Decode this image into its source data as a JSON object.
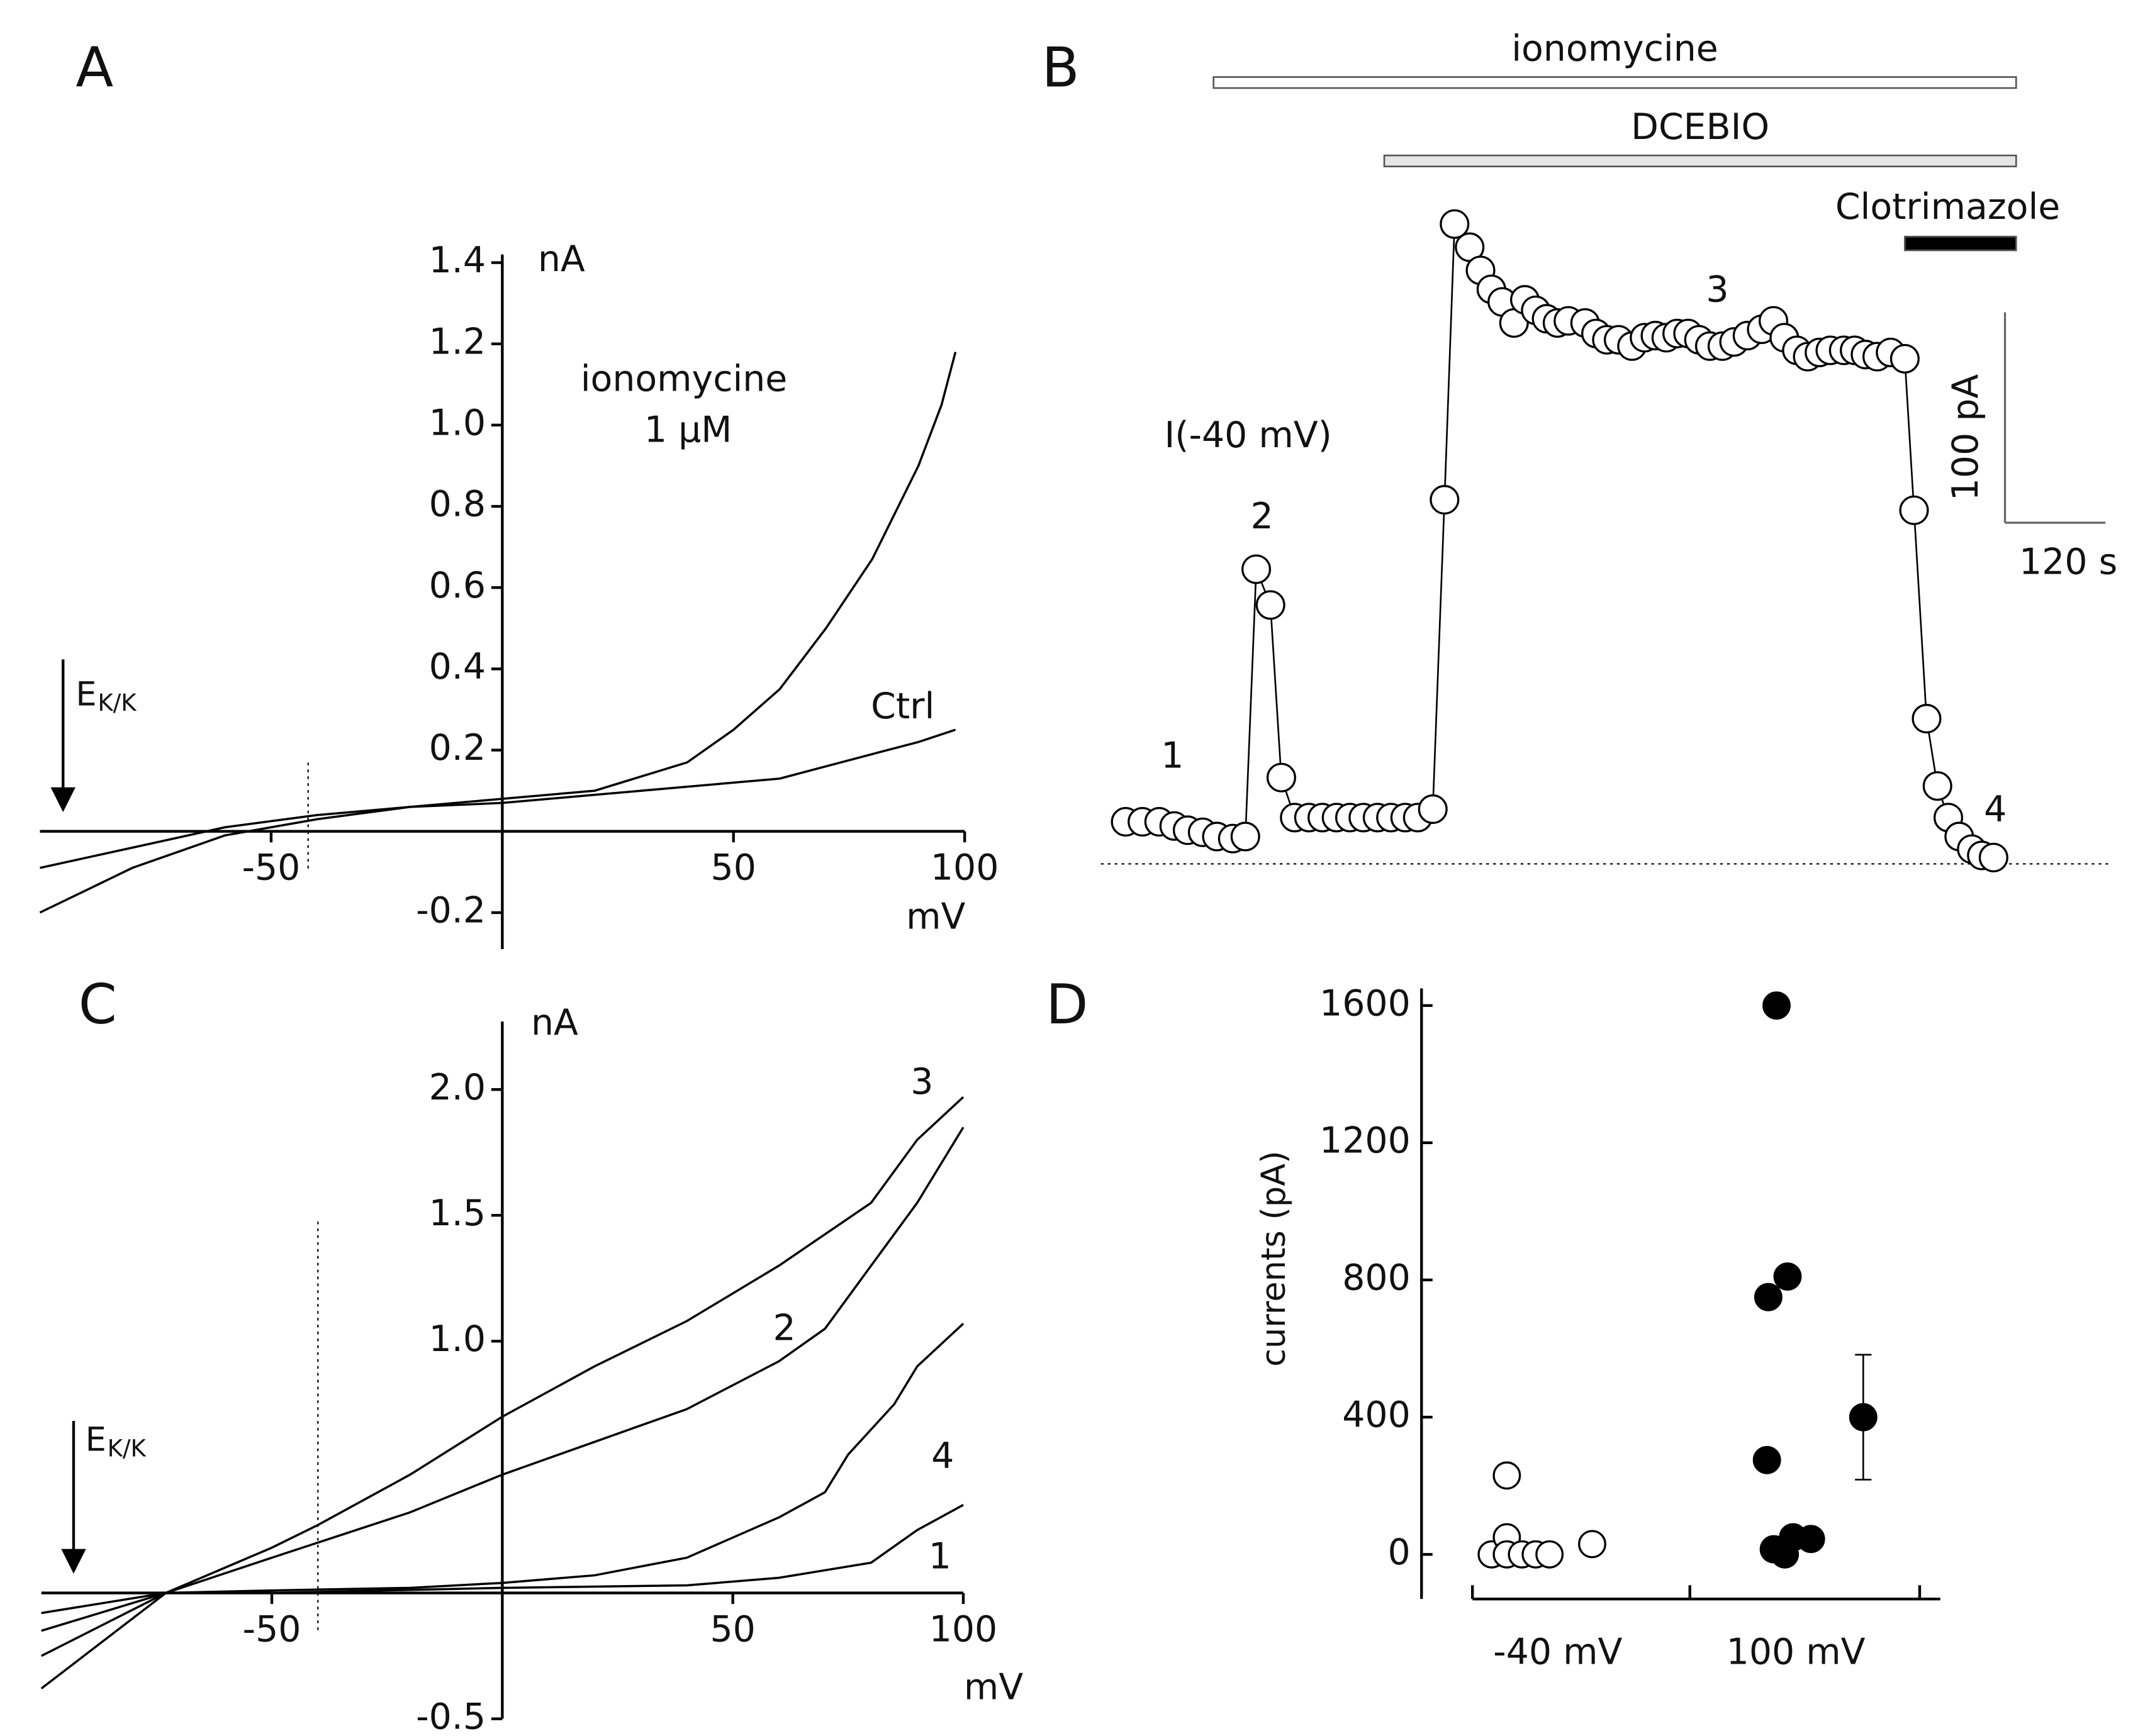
{
  "chart_data": [
    {
      "type": "line",
      "panel": "A",
      "x_label": "mV",
      "y_label": "nA",
      "xlim": [
        -100,
        100
      ],
      "ylim": [
        -0.29,
        1.42
      ],
      "xticks": [
        -50,
        50,
        100
      ],
      "yticks": [
        -0.2,
        0.2,
        0.4,
        0.6,
        0.8,
        {
          "value": 1,
          "label": "1.0"
        },
        1.2,
        1.4
      ],
      "series": [
        {
          "name": "ionomycine",
          "color": "#000000",
          "x": [
            -100,
            -80,
            -60,
            -40,
            -20,
            0,
            20,
            40,
            50,
            60,
            70,
            80,
            90,
            95,
            98
          ],
          "values": [
            -0.2,
            -0.09,
            -0.01,
            0.03,
            0.06,
            0.08,
            0.1,
            0.17,
            0.25,
            0.35,
            0.5,
            0.67,
            0.9,
            1.05,
            1.18
          ]
        },
        {
          "name": "Ctrl",
          "color": "#000000",
          "x": [
            -100,
            -80,
            -60,
            -40,
            -20,
            0,
            20,
            40,
            60,
            80,
            90,
            98
          ],
          "values": [
            -0.09,
            -0.04,
            0.01,
            0.04,
            0.06,
            0.07,
            0.09,
            0.11,
            0.13,
            0.19,
            0.22,
            0.25
          ]
        }
      ],
      "annotations": [
        "1 μM"
      ],
      "ek_label": "E",
      "ek_sub": "K/K",
      "arrow_x": -95,
      "dotted_x": -42
    },
    {
      "type": "timecourse",
      "panel": "B",
      "xlim": [
        0,
        1100
      ],
      "ylim": [
        0,
        310
      ],
      "x": [
        0,
        20,
        40,
        58,
        74,
        92,
        109,
        128,
        143,
        156,
        173,
        186,
        202,
        219,
        235,
        252,
        268,
        284,
        301,
        317,
        334,
        349,
        367,
        381,
        393,
        411,
        424,
        437,
        450,
        464,
        477,
        490,
        503,
        516,
        529,
        549,
        562,
        575,
        589,
        605,
        620,
        633,
        646,
        659,
        672,
        685,
        698,
        713,
        727,
        743,
        760,
        774,
        787,
        802,
        815,
        829,
        842,
        858,
        871,
        884,
        898,
        914,
        931,
        942,
        957,
        970,
        983,
        996,
        1011,
        1023,
        1037
      ],
      "values": [
        20,
        20,
        20,
        18,
        16,
        15,
        13,
        12,
        13,
        140,
        123,
        41,
        22,
        22,
        22,
        22,
        22,
        22,
        22,
        22,
        22,
        22,
        26,
        173,
        304,
        293,
        282,
        273,
        267,
        257,
        268,
        263,
        259,
        257,
        258,
        257,
        252,
        249,
        249,
        246,
        250,
        251,
        250,
        252,
        252,
        249,
        246,
        246,
        248,
        251,
        254,
        258,
        250,
        244,
        241,
        243,
        244,
        244,
        244,
        242,
        241,
        243,
        240,
        168,
        69,
        37,
        22,
        13,
        7,
        4,
        3
      ],
      "bars": [
        {
          "label": "ionomycine",
          "start": 105,
          "end": 1064,
          "color": "#ffffff"
        },
        {
          "label": "DCEBIO",
          "start": 309,
          "end": 1064,
          "color": "#e6e6e6"
        },
        {
          "label": "Clotrimazole",
          "start": 931,
          "end": 1064,
          "color": "#000000"
        }
      ],
      "scale_bars": {
        "y": {
          "value": 100,
          "label": "100 pA"
        },
        "x": {
          "value": 120,
          "label": "120 s"
        }
      },
      "annotations": [
        "I(-40 mV)",
        "1",
        "2",
        "3",
        "4"
      ]
    },
    {
      "type": "line",
      "panel": "C",
      "x_label": "mV",
      "y_label": "nA",
      "xlim": [
        -100,
        100
      ],
      "ylim": [
        -0.5,
        2.27
      ],
      "xticks": [
        -50,
        50,
        100
      ],
      "yticks": [
        -0.5,
        {
          "value": 1,
          "label": "1.0"
        },
        1.5,
        {
          "value": 2,
          "label": "2.0"
        }
      ],
      "series": [
        {
          "name": "1",
          "color": "#000000",
          "x": [
            -100,
            -73,
            -50,
            0,
            40,
            60,
            80,
            90,
            100
          ],
          "values": [
            -0.08,
            0,
            0,
            0.02,
            0.03,
            0.06,
            0.12,
            0.25,
            0.35
          ]
        },
        {
          "name": "2",
          "color": "#000000",
          "x": [
            -100,
            -73,
            -50,
            -40,
            -20,
            0,
            20,
            40,
            60,
            70,
            80,
            90,
            100
          ],
          "values": [
            -0.25,
            0,
            0.14,
            0.2,
            0.32,
            0.47,
            0.6,
            0.73,
            0.92,
            1.05,
            1.3,
            1.55,
            1.85
          ]
        },
        {
          "name": "3",
          "color": "#000000",
          "x": [
            -100,
            -73,
            -50,
            -40,
            -20,
            0,
            20,
            40,
            60,
            80,
            90,
            100
          ],
          "values": [
            -0.38,
            0,
            0.18,
            0.27,
            0.47,
            0.7,
            0.9,
            1.08,
            1.3,
            1.55,
            1.8,
            1.97
          ]
        },
        {
          "name": "4",
          "color": "#000000",
          "x": [
            -100,
            -73,
            -50,
            -20,
            0,
            20,
            40,
            60,
            70,
            75,
            85,
            90,
            100
          ],
          "values": [
            -0.15,
            0,
            0.01,
            0.02,
            0.04,
            0.07,
            0.14,
            0.3,
            0.4,
            0.55,
            0.75,
            0.9,
            1.07
          ]
        }
      ],
      "ek_label": "E",
      "ek_sub": "K/K",
      "arrow_x": -93,
      "dotted_x": -40
    },
    {
      "type": "strip",
      "panel": "D",
      "y_label": "currents (pA)",
      "categories": [
        "-40 mV",
        "100 mV"
      ],
      "ylim": [
        -130,
        1650
      ],
      "yticks": [
        0,
        400,
        800,
        1200,
        1600
      ],
      "points": [
        [
          0,
          230,
          50,
          0,
          0,
          0,
          0
        ],
        [
          1600,
          810,
          750,
          275,
          15,
          0,
          50,
          45
        ]
      ],
      "means": [
        30,
        400
      ],
      "errors": [
        15,
        182
      ],
      "fills": [
        "#ffffff",
        "#000000"
      ]
    }
  ]
}
